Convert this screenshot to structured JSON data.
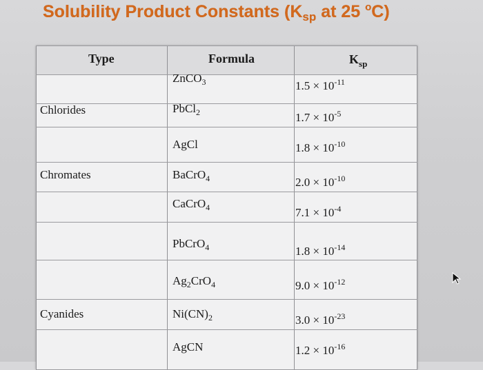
{
  "title": {
    "main": "Solubility Product Constants (K",
    "sub": "sp",
    "mid": " at 25 ",
    "deg": "o",
    "end": "C)"
  },
  "table": {
    "headers": {
      "type": "Type",
      "formula": "Formula",
      "ksp_main": "K",
      "ksp_sub": "sp"
    },
    "rows": [
      {
        "type": "",
        "formula": [
          [
            "ZnCO",
            ""
          ],
          [
            "3",
            "sub"
          ]
        ],
        "ksp_base": "1.5 × 10",
        "ksp_exp": "-11"
      },
      {
        "type": "Chlorides",
        "formula": [
          [
            "PbCl",
            ""
          ],
          [
            "2",
            "sub"
          ]
        ],
        "ksp_base": "1.7 × 10",
        "ksp_exp": "-5"
      },
      {
        "type": "",
        "formula": [
          [
            "AgCl",
            ""
          ]
        ],
        "ksp_base": "1.8 × 10",
        "ksp_exp": "-10"
      },
      {
        "type": "Chromates",
        "formula": [
          [
            "BaCrO",
            ""
          ],
          [
            "4",
            "sub"
          ]
        ],
        "ksp_base": "2.0 × 10",
        "ksp_exp": "-10"
      },
      {
        "type": "",
        "formula": [
          [
            "CaCrO",
            ""
          ],
          [
            "4",
            "sub"
          ]
        ],
        "ksp_base": "7.1 × 10",
        "ksp_exp": "-4"
      },
      {
        "type": "",
        "formula": [
          [
            "PbCrO",
            ""
          ],
          [
            "4",
            "sub"
          ]
        ],
        "ksp_base": "1.8 × 10",
        "ksp_exp": "-14"
      },
      {
        "type": "",
        "formula": [
          [
            "Ag",
            ""
          ],
          [
            "2",
            "sub"
          ],
          [
            "CrO",
            ""
          ],
          [
            "4",
            "sub"
          ]
        ],
        "ksp_base": "9.0 × 10",
        "ksp_exp": "-12"
      },
      {
        "type": "Cyanides",
        "formula": [
          [
            "Ni(CN)",
            ""
          ],
          [
            "2",
            "sub"
          ]
        ],
        "ksp_base": "3.0 × 10",
        "ksp_exp": "-23"
      },
      {
        "type": "",
        "formula": [
          [
            "AgCN",
            ""
          ]
        ],
        "ksp_base": "1.2 × 10",
        "ksp_exp": "-16"
      }
    ]
  },
  "colors": {
    "title": "#d2691e",
    "grid": "#9a9a9e",
    "header_bg": "#dcdcde"
  },
  "icons": {
    "cursor": "mouse-pointer-icon"
  }
}
